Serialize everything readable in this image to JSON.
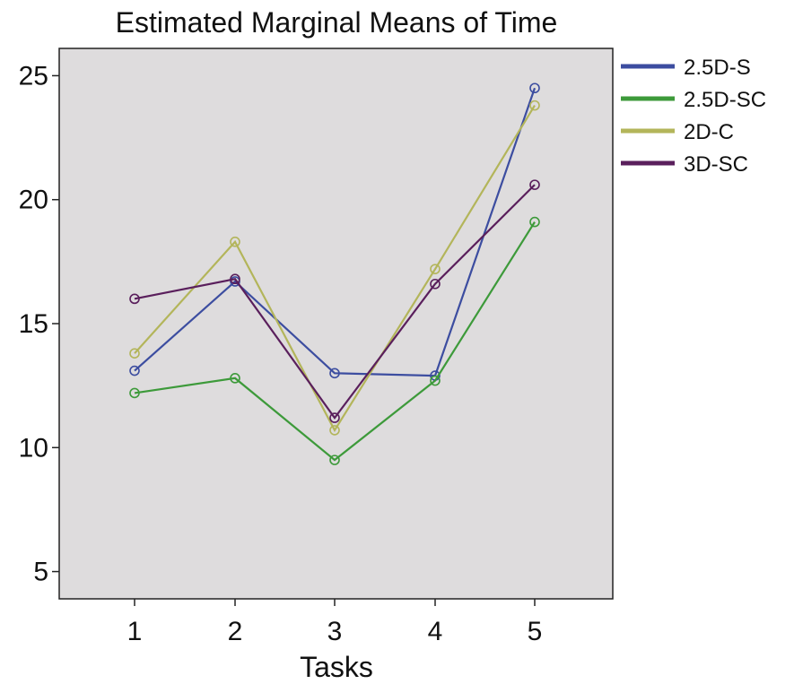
{
  "chart_data": {
    "type": "line",
    "title": "Estimated Marginal Means of Time",
    "xlabel": "Tasks",
    "ylabel": "",
    "categories": [
      "1",
      "2",
      "3",
      "4",
      "5"
    ],
    "yticks": [
      5,
      10,
      15,
      20,
      25
    ],
    "ylim": [
      3.9,
      26.1
    ],
    "grid": false,
    "legend_position": "right",
    "background": "#dedcdd",
    "series": [
      {
        "name": "2.5D-S",
        "color": "#3c4da0",
        "values": [
          13.1,
          16.7,
          13.0,
          12.9,
          24.5
        ]
      },
      {
        "name": "2.5D-SC",
        "color": "#3d9a3a",
        "values": [
          12.2,
          12.8,
          9.5,
          12.7,
          19.1
        ]
      },
      {
        "name": "2D-C",
        "color": "#b3b55a",
        "values": [
          13.8,
          18.3,
          10.7,
          17.2,
          23.8
        ]
      },
      {
        "name": "3D-SC",
        "color": "#5a1f5c",
        "values": [
          16.0,
          16.8,
          11.2,
          16.6,
          20.6
        ]
      }
    ]
  }
}
